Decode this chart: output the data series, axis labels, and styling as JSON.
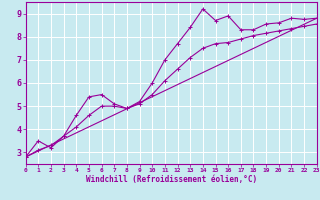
{
  "bg_color": "#c8eaf0",
  "grid_color": "#aadddd",
  "line_color": "#990099",
  "xlabel": "Windchill (Refroidissement éolien,°C)",
  "xlim": [
    0,
    23
  ],
  "ylim": [
    2.5,
    9.5
  ],
  "yticks": [
    3,
    4,
    5,
    6,
    7,
    8,
    9
  ],
  "xticks": [
    0,
    1,
    2,
    3,
    4,
    5,
    6,
    7,
    8,
    9,
    10,
    11,
    12,
    13,
    14,
    15,
    16,
    17,
    18,
    19,
    20,
    21,
    22,
    23
  ],
  "line1_x": [
    0,
    1,
    2,
    3,
    4,
    5,
    6,
    7,
    8,
    9,
    10,
    11,
    12,
    13,
    14,
    15,
    16,
    17,
    18,
    19,
    20,
    21,
    22,
    23
  ],
  "line1_y": [
    2.8,
    3.5,
    3.2,
    3.7,
    4.6,
    5.4,
    5.5,
    5.1,
    4.9,
    5.2,
    6.0,
    7.0,
    7.7,
    8.4,
    9.2,
    8.7,
    8.9,
    8.3,
    8.3,
    8.55,
    8.6,
    8.8,
    8.75,
    8.8
  ],
  "line2_x": [
    0,
    1,
    2,
    3,
    4,
    5,
    6,
    7,
    8,
    9,
    10,
    11,
    12,
    13,
    14,
    15,
    16,
    17,
    18,
    19,
    20,
    21,
    22,
    23
  ],
  "line2_y": [
    2.8,
    3.1,
    3.3,
    3.7,
    4.1,
    4.6,
    5.0,
    5.0,
    4.9,
    5.1,
    5.5,
    6.1,
    6.6,
    7.1,
    7.5,
    7.7,
    7.75,
    7.9,
    8.05,
    8.15,
    8.25,
    8.35,
    8.45,
    8.55
  ],
  "line3_x": [
    0,
    23
  ],
  "line3_y": [
    2.8,
    8.8
  ]
}
